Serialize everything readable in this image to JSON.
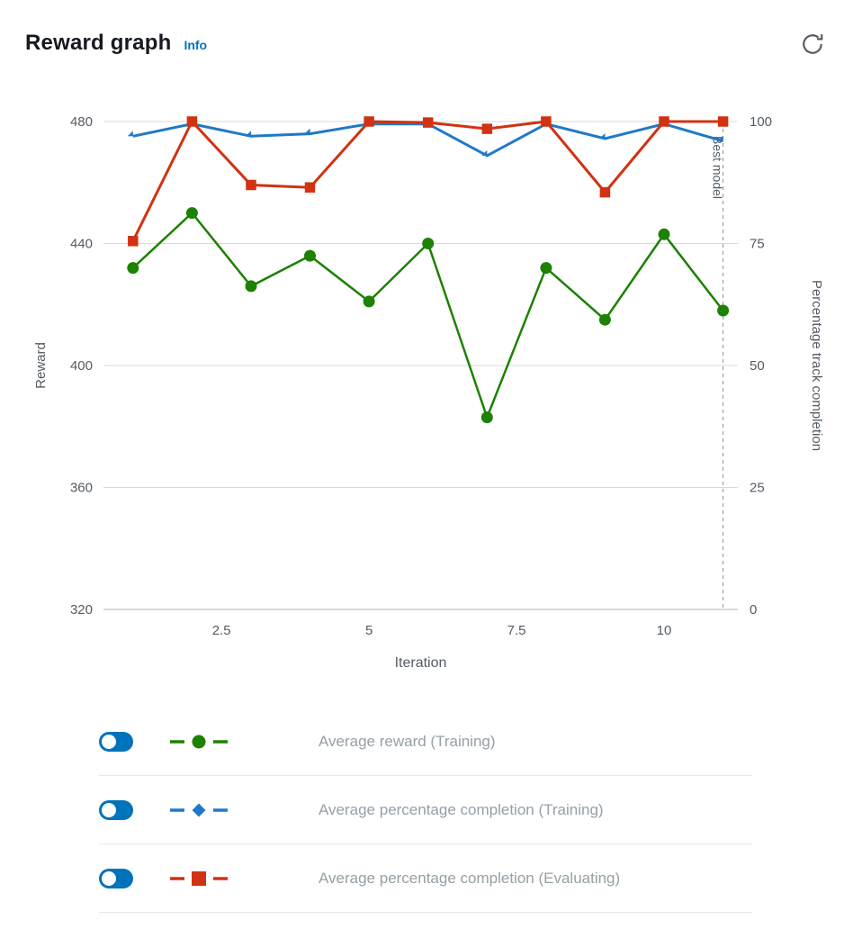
{
  "header": {
    "title": "Reward graph",
    "info_label": "Info"
  },
  "chart_data": {
    "type": "line",
    "x": [
      1,
      2,
      3,
      4,
      5,
      6,
      7,
      8,
      9,
      10,
      11
    ],
    "x_axis": {
      "label": "Iteration",
      "ticks": [
        "2.5",
        "5",
        "7.5",
        "10"
      ],
      "range": [
        0.5,
        11.25
      ]
    },
    "left_axis": {
      "label": "Reward",
      "ticks": [
        480,
        440,
        400,
        360,
        320
      ],
      "range": [
        320,
        480
      ]
    },
    "right_axis": {
      "label": "Percentage track completion",
      "ticks": [
        100,
        75,
        50,
        25,
        0
      ],
      "range": [
        0,
        100
      ]
    },
    "best_model": {
      "label": "Best model",
      "x": 11
    },
    "grid": true,
    "series": [
      {
        "name": "Average reward (Training)",
        "axis": "left",
        "marker": "circle",
        "color": "#1d8102",
        "values": [
          432,
          450,
          426,
          436,
          421,
          440,
          383,
          432,
          415,
          443,
          418
        ]
      },
      {
        "name": "Average percentage completion (Training)",
        "axis": "right",
        "marker": "diamond",
        "color": "#2079c7",
        "values": [
          97,
          99.5,
          97,
          97.5,
          99.5,
          99.5,
          93,
          99.5,
          96.5,
          99.5,
          96
        ]
      },
      {
        "name": "Average percentage completion (Evaluating)",
        "axis": "right",
        "marker": "square",
        "color": "#d13212",
        "values": [
          75.5,
          100,
          87,
          86.5,
          100,
          99.8,
          98.5,
          100,
          85.5,
          100,
          100
        ]
      }
    ]
  },
  "legend": {
    "toggle_color": "#0073bb",
    "items": [
      {
        "label": "Average reward (Training)",
        "enabled": true,
        "color": "#1d8102",
        "marker": "circle"
      },
      {
        "label": "Average percentage completion (Training)",
        "enabled": true,
        "color": "#2079c7",
        "marker": "diamond"
      },
      {
        "label": "Average percentage completion (Evaluating)",
        "enabled": true,
        "color": "#d13212",
        "marker": "square"
      }
    ]
  },
  "colors": {
    "accent": "#0073bb",
    "axis_text": "#545b64",
    "gridline": "#d5dbdb",
    "legend_text": "#95a0a6"
  }
}
